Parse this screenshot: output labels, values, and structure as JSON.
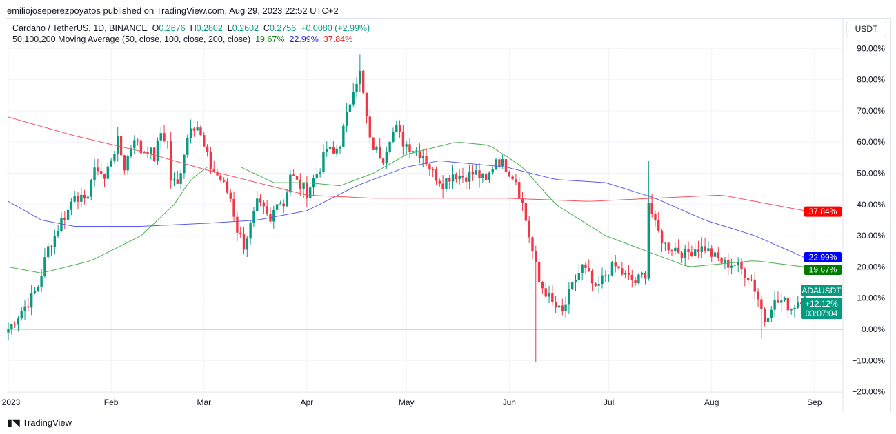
{
  "header": {
    "published": "emiliojoseperezpoyatos published on TradingView.com, Aug 29, 2023 22:52 UTC+2"
  },
  "legend": {
    "symbol": "Cardano / TetherUS, 1D, BINANCE",
    "o_label": "O",
    "o": "0.2676",
    "h_label": "H",
    "h": "0.2802",
    "l_label": "L",
    "l": "0.2602",
    "c_label": "C",
    "c": "0.2756",
    "change": "+0.0080 (+2.99%)",
    "ma_title": "50,100,200 Moving Average (50, close, 100, close, 200, close)",
    "ma50": "19.67%",
    "ma100": "22.99%",
    "ma200": "37.84%"
  },
  "currency_button": "USDT",
  "price_tag": {
    "symbol": "ADAUSDT",
    "change": "+12.12%",
    "countdown": "03:07:04"
  },
  "footer": {
    "logo": "TradingView"
  },
  "colors": {
    "up": "#089981",
    "down": "#f23645",
    "ma50": "#4caf50",
    "ma100": "#5b5bf5",
    "ma200": "#f7525f"
  },
  "chart_data": {
    "type": "candlestick",
    "ylim": [
      -20,
      92
    ],
    "y_ticks": [
      90,
      80,
      70,
      60,
      50,
      40,
      30,
      20,
      10,
      0,
      -10,
      -20
    ],
    "y_tick_labels": [
      "90.00%",
      "80.00%",
      "70.00%",
      "60.00%",
      "50.00%",
      "40.00%",
      "30.00%",
      "20.00%",
      "10.00%",
      "0.00%",
      "−10.00%",
      "−20.00%"
    ],
    "x_ticks": [
      {
        "day": 0,
        "label": "2023"
      },
      {
        "day": 31,
        "label": "Feb"
      },
      {
        "day": 59,
        "label": "Mar"
      },
      {
        "day": 90,
        "label": "Apr"
      },
      {
        "day": 120,
        "label": "May"
      },
      {
        "day": 151,
        "label": "Jun"
      },
      {
        "day": 181,
        "label": "Jul"
      },
      {
        "day": 212,
        "label": "Aug"
      },
      {
        "day": 243,
        "label": "Sep"
      }
    ],
    "days": 241,
    "close_anchors": [
      [
        0,
        0
      ],
      [
        2,
        3
      ],
      [
        4,
        6
      ],
      [
        7,
        10
      ],
      [
        9,
        14
      ],
      [
        12,
        26
      ],
      [
        14,
        30
      ],
      [
        16,
        35
      ],
      [
        18,
        38
      ],
      [
        20,
        44
      ],
      [
        23,
        40
      ],
      [
        25,
        48
      ],
      [
        27,
        52
      ],
      [
        29,
        48
      ],
      [
        31,
        55
      ],
      [
        33,
        60
      ],
      [
        35,
        52
      ],
      [
        38,
        62
      ],
      [
        40,
        57
      ],
      [
        42,
        58
      ],
      [
        44,
        55
      ],
      [
        46,
        63
      ],
      [
        48,
        60
      ],
      [
        49,
        48
      ],
      [
        51,
        46
      ],
      [
        53,
        57
      ],
      [
        55,
        66
      ],
      [
        57,
        65
      ],
      [
        59,
        58
      ],
      [
        61,
        52
      ],
      [
        64,
        48
      ],
      [
        67,
        42
      ],
      [
        69,
        32
      ],
      [
        71,
        27
      ],
      [
        73,
        33
      ],
      [
        75,
        40
      ],
      [
        77,
        38
      ],
      [
        79,
        34
      ],
      [
        81,
        42
      ],
      [
        83,
        40
      ],
      [
        85,
        50
      ],
      [
        87,
        47
      ],
      [
        90,
        44
      ],
      [
        92,
        48
      ],
      [
        94,
        52
      ],
      [
        96,
        58
      ],
      [
        98,
        56
      ],
      [
        100,
        60
      ],
      [
        102,
        68
      ],
      [
        104,
        78
      ],
      [
        106,
        82
      ],
      [
        107,
        75
      ],
      [
        109,
        60
      ],
      [
        111,
        57
      ],
      [
        113,
        55
      ],
      [
        115,
        62
      ],
      [
        117,
        64
      ],
      [
        119,
        60
      ],
      [
        122,
        58
      ],
      [
        125,
        56
      ],
      [
        128,
        50
      ],
      [
        131,
        47
      ],
      [
        134,
        50
      ],
      [
        137,
        49
      ],
      [
        141,
        50
      ],
      [
        144,
        47
      ],
      [
        147,
        55
      ],
      [
        150,
        52
      ],
      [
        153,
        48
      ],
      [
        155,
        40
      ],
      [
        157,
        30
      ],
      [
        160,
        15
      ],
      [
        162,
        12
      ],
      [
        164,
        8
      ],
      [
        167,
        5
      ],
      [
        169,
        11
      ],
      [
        171,
        16
      ],
      [
        173,
        20
      ],
      [
        175,
        17
      ],
      [
        177,
        12
      ],
      [
        179,
        16
      ],
      [
        181,
        19
      ],
      [
        183,
        20
      ],
      [
        186,
        17
      ],
      [
        189,
        15
      ],
      [
        192,
        18
      ],
      [
        193,
        41
      ],
      [
        195,
        33
      ],
      [
        198,
        27
      ],
      [
        201,
        26
      ],
      [
        204,
        24
      ],
      [
        207,
        26
      ],
      [
        210,
        26
      ],
      [
        213,
        23
      ],
      [
        216,
        21
      ],
      [
        219,
        21
      ],
      [
        221,
        19
      ],
      [
        224,
        16
      ],
      [
        226,
        10
      ],
      [
        228,
        3
      ],
      [
        230,
        8
      ],
      [
        233,
        9
      ],
      [
        236,
        7
      ],
      [
        239,
        10
      ],
      [
        240,
        12
      ]
    ],
    "spikes": [
      {
        "day": 159,
        "low": -10.5
      },
      {
        "day": 227,
        "low": -3
      },
      {
        "day": 193,
        "high": 54
      },
      {
        "day": 106,
        "high": 88
      }
    ],
    "series": [
      {
        "name": "MA50",
        "last": 19.67,
        "anchors": [
          [
            0,
            20
          ],
          [
            10,
            18
          ],
          [
            25,
            22
          ],
          [
            40,
            30
          ],
          [
            50,
            40
          ],
          [
            55,
            48
          ],
          [
            60,
            52
          ],
          [
            70,
            52
          ],
          [
            80,
            47
          ],
          [
            90,
            47
          ],
          [
            100,
            46
          ],
          [
            110,
            50
          ],
          [
            120,
            56
          ],
          [
            135,
            60
          ],
          [
            145,
            59
          ],
          [
            155,
            52
          ],
          [
            165,
            40
          ],
          [
            180,
            30
          ],
          [
            195,
            24
          ],
          [
            205,
            20
          ],
          [
            215,
            21
          ],
          [
            225,
            22
          ],
          [
            240,
            20
          ]
        ]
      },
      {
        "name": "MA100",
        "last": 22.99,
        "anchors": [
          [
            0,
            41
          ],
          [
            10,
            35
          ],
          [
            20,
            33
          ],
          [
            40,
            33
          ],
          [
            60,
            34
          ],
          [
            75,
            35
          ],
          [
            90,
            38
          ],
          [
            105,
            46
          ],
          [
            120,
            52
          ],
          [
            130,
            54
          ],
          [
            150,
            52
          ],
          [
            165,
            48
          ],
          [
            180,
            47
          ],
          [
            195,
            42
          ],
          [
            210,
            35
          ],
          [
            225,
            30
          ],
          [
            240,
            23
          ]
        ]
      },
      {
        "name": "MA200",
        "last": 37.84,
        "anchors": [
          [
            0,
            68
          ],
          [
            20,
            62
          ],
          [
            40,
            57
          ],
          [
            60,
            51
          ],
          [
            75,
            47
          ],
          [
            90,
            43
          ],
          [
            110,
            42
          ],
          [
            150,
            42
          ],
          [
            175,
            41
          ],
          [
            195,
            42
          ],
          [
            215,
            43
          ],
          [
            240,
            38
          ]
        ]
      }
    ]
  }
}
